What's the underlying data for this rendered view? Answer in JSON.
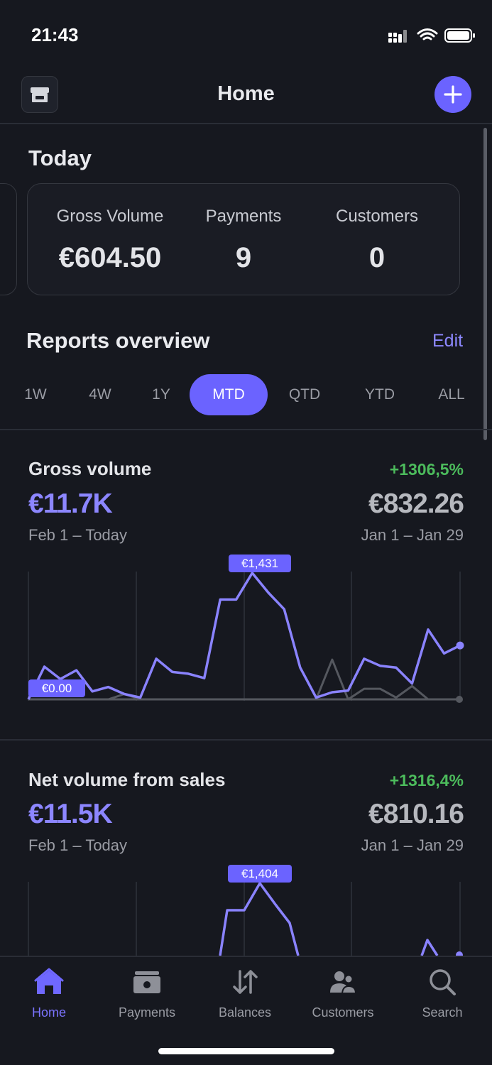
{
  "status": {
    "time": "21:43"
  },
  "header": {
    "title": "Home"
  },
  "today": {
    "title": "Today",
    "kpis": [
      {
        "label": "Gross Volume",
        "value": "€604.50"
      },
      {
        "label": "Payments",
        "value": "9"
      },
      {
        "label": "Customers",
        "value": "0"
      }
    ]
  },
  "reports": {
    "title": "Reports overview",
    "edit_label": "Edit",
    "ranges": [
      "1W",
      "4W",
      "1Y",
      "MTD",
      "QTD",
      "YTD",
      "ALL"
    ],
    "active_range": "MTD"
  },
  "metrics": [
    {
      "title": "Gross volume",
      "change": "+1306,5%",
      "value": "€11.7K",
      "previous_value": "€832.26",
      "range": "Feb 1 – Today",
      "previous_range": "Jan 1 – Jan 29",
      "max_label": "€1,431",
      "min_label": "€0.00",
      "chart_data": {
        "type": "line",
        "ylim": [
          0,
          1431
        ],
        "series": [
          {
            "values": [
              0,
              370,
              230,
              330,
              90,
              140,
              60,
              20,
              460,
              310,
              290,
              240,
              1130,
              1130,
              1431,
              1210,
              1020,
              360,
              20,
              80,
              100,
              460,
              380,
              360,
              180,
              790,
              520,
              610
            ]
          },
          {
            "values": [
              0,
              0,
              0,
              0,
              0,
              0,
              60,
              0,
              0,
              0,
              0,
              0,
              0,
              0,
              0,
              0,
              0,
              0,
              0,
              450,
              0,
              120,
              120,
              20,
              150,
              0,
              0,
              0
            ]
          }
        ]
      }
    },
    {
      "title": "Net volume from sales",
      "change": "+1316,4%",
      "value": "€11.5K",
      "previous_value": "€810.16",
      "range": "Feb 1 – Today",
      "previous_range": "Jan 1 – Jan 29",
      "max_label": "€1,404"
    }
  ],
  "tabbar": {
    "items": [
      {
        "label": "Home",
        "icon": "home-icon"
      },
      {
        "label": "Payments",
        "icon": "wallet-icon"
      },
      {
        "label": "Balances",
        "icon": "arrows-updown-icon"
      },
      {
        "label": "Customers",
        "icon": "customers-icon"
      },
      {
        "label": "Search",
        "icon": "search-icon"
      }
    ],
    "active": "Home"
  },
  "colors": {
    "accent": "#6b63ff",
    "positive": "#4cbb5c",
    "background": "#16181f",
    "previous_series": "#55585f"
  }
}
